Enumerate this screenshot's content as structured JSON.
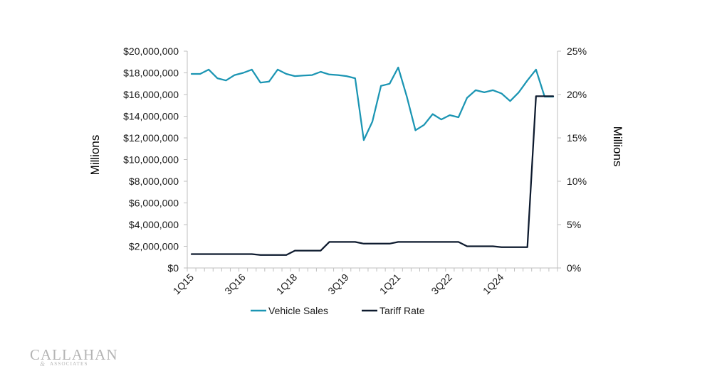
{
  "chart_data": {
    "type": "line",
    "x": [
      "1Q15",
      "2Q15",
      "3Q15",
      "4Q15",
      "1Q16",
      "2Q16",
      "3Q16",
      "4Q16",
      "1Q17",
      "2Q17",
      "3Q17",
      "4Q17",
      "1Q18",
      "2Q18",
      "3Q18",
      "4Q18",
      "1Q19",
      "2Q19",
      "3Q19",
      "4Q19",
      "1Q20",
      "2Q20",
      "3Q20",
      "4Q20",
      "1Q21",
      "2Q21",
      "3Q21",
      "4Q21",
      "1Q22",
      "2Q22",
      "3Q22",
      "4Q22",
      "1Q23",
      "2Q23",
      "3Q23",
      "4Q23",
      "1Q24",
      "2Q24",
      "3Q24",
      "4Q24",
      "1Q25",
      "2Q25",
      "3Q25"
    ],
    "x_tick_labels": [
      "1Q15",
      "3Q16",
      "1Q18",
      "3Q19",
      "1Q21",
      "3Q22",
      "1Q24"
    ],
    "series": [
      {
        "name": "Vehicle Sales",
        "axis": "left",
        "color": "#1b95b3",
        "values": [
          17900000,
          17900000,
          18300000,
          17500000,
          17300000,
          17800000,
          18000000,
          18300000,
          17100000,
          17200000,
          18300000,
          17900000,
          17700000,
          17750000,
          17800000,
          18100000,
          17850000,
          17800000,
          17700000,
          17500000,
          11800000,
          13500000,
          16800000,
          17000000,
          18500000,
          15800000,
          12700000,
          13200000,
          14200000,
          13700000,
          14100000,
          13900000,
          15700000,
          16400000,
          16200000,
          16400000,
          16100000,
          15400000,
          16200000,
          17300000,
          18300000,
          15800000,
          15800000
        ]
      },
      {
        "name": "Tariff Rate",
        "axis": "right",
        "color": "#0d1a2e",
        "values": [
          1.6,
          1.6,
          1.6,
          1.6,
          1.6,
          1.6,
          1.6,
          1.6,
          1.5,
          1.5,
          1.5,
          1.5,
          2.0,
          2.0,
          2.0,
          2.0,
          3.0,
          3.0,
          3.0,
          3.0,
          2.8,
          2.8,
          2.8,
          2.8,
          3.0,
          3.0,
          3.0,
          3.0,
          3.0,
          3.0,
          3.0,
          3.0,
          2.5,
          2.5,
          2.5,
          2.5,
          2.4,
          2.4,
          2.4,
          2.4,
          19.8,
          19.8,
          19.8
        ]
      }
    ],
    "y_left": {
      "label": "Millions",
      "min": 0,
      "max": 20000000,
      "ticks": [
        {
          "value": 0,
          "label": "$0"
        },
        {
          "value": 2000000,
          "label": "$2,000,000"
        },
        {
          "value": 4000000,
          "label": "$4,000,000"
        },
        {
          "value": 6000000,
          "label": "$6,000,000"
        },
        {
          "value": 8000000,
          "label": "$8,000,000"
        },
        {
          "value": 10000000,
          "label": "$10,000,000"
        },
        {
          "value": 12000000,
          "label": "$12,000,000"
        },
        {
          "value": 14000000,
          "label": "$14,000,000"
        },
        {
          "value": 16000000,
          "label": "$16,000,000"
        },
        {
          "value": 18000000,
          "label": "$18,000,000"
        },
        {
          "value": 20000000,
          "label": "$20,000,000"
        }
      ]
    },
    "y_right": {
      "label": "Millions",
      "min": 0,
      "max": 25,
      "ticks": [
        {
          "value": 0,
          "label": "0%"
        },
        {
          "value": 5,
          "label": "5%"
        },
        {
          "value": 10,
          "label": "10%"
        },
        {
          "value": 15,
          "label": "15%"
        },
        {
          "value": 20,
          "label": "20%"
        },
        {
          "value": 25,
          "label": "25%"
        }
      ]
    },
    "grid": false,
    "legend": "bottom-center",
    "axis_color": "#bfbfbf"
  },
  "logo": {
    "word": "CALLAHAN",
    "sub": "ASSOCIATES",
    "amp": "&"
  }
}
